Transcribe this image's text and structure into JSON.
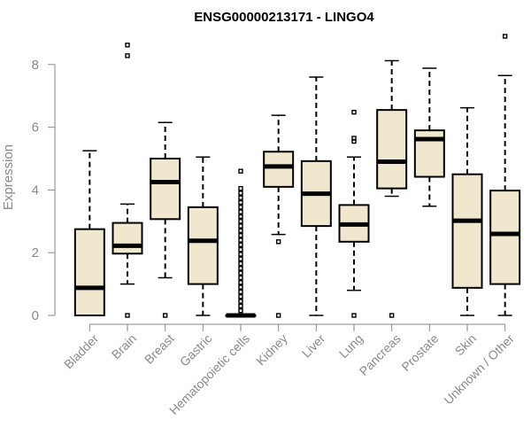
{
  "chart_data": {
    "type": "boxplot",
    "title": "ENSG00000213171 - LINGO4",
    "xlabel": "",
    "ylabel": "Expression",
    "ylim": [
      0,
      9
    ],
    "yticks": [
      0,
      2,
      4,
      6,
      8
    ],
    "box_color": "#efe8cf",
    "categories": [
      "Bladder",
      "Brain",
      "Breast",
      "Gastric",
      "Hematopoietic cells",
      "Kidney",
      "Liver",
      "Lung",
      "Pancreas",
      "Prostate",
      "Skin",
      "Unknown / Other"
    ],
    "boxes": [
      {
        "name": "Bladder",
        "whislo": 0,
        "q1": 0,
        "med": 0.88,
        "q3": 2.75,
        "whishi": 5.25,
        "outliers": []
      },
      {
        "name": "Brain",
        "whislo": 1.0,
        "q1": 1.97,
        "med": 2.22,
        "q3": 2.95,
        "whishi": 3.55,
        "outliers": [
          0,
          8.28,
          8.62
        ]
      },
      {
        "name": "Breast",
        "whislo": 1.2,
        "q1": 3.07,
        "med": 4.25,
        "q3": 5.0,
        "whishi": 6.15,
        "outliers": [
          0
        ]
      },
      {
        "name": "Gastric",
        "whislo": 0,
        "q1": 1.0,
        "med": 2.38,
        "q3": 3.45,
        "whishi": 5.05,
        "outliers": []
      },
      {
        "name": "Hematopoietic cells",
        "whislo": 0,
        "q1": 0,
        "med": 0,
        "q3": 0,
        "whishi": 0,
        "outliers": [
          0.15,
          0.3,
          0.45,
          0.6,
          0.75,
          0.9,
          1.05,
          1.2,
          1.35,
          1.5,
          1.65,
          1.8,
          1.95,
          2.1,
          2.25,
          2.4,
          2.55,
          2.7,
          2.85,
          3.0,
          3.15,
          3.3,
          3.45,
          3.6,
          3.75,
          3.9,
          4.05,
          4.6
        ]
      },
      {
        "name": "Kidney",
        "whislo": 2.58,
        "q1": 4.1,
        "med": 4.75,
        "q3": 5.22,
        "whishi": 6.38,
        "outliers": [
          0,
          2.35
        ]
      },
      {
        "name": "Liver",
        "whislo": 0,
        "q1": 2.85,
        "med": 3.88,
        "q3": 4.92,
        "whishi": 7.6,
        "outliers": []
      },
      {
        "name": "Lung",
        "whislo": 0.8,
        "q1": 2.35,
        "med": 2.9,
        "q3": 3.52,
        "whishi": 5.05,
        "outliers": [
          0,
          5.55,
          5.65,
          6.48
        ]
      },
      {
        "name": "Pancreas",
        "whislo": 3.8,
        "q1": 4.05,
        "med": 4.9,
        "q3": 6.55,
        "whishi": 8.12,
        "outliers": [
          0
        ]
      },
      {
        "name": "Prostate",
        "whislo": 3.48,
        "q1": 4.42,
        "med": 5.62,
        "q3": 5.9,
        "whishi": 7.88,
        "outliers": []
      },
      {
        "name": "Skin",
        "whislo": 0,
        "q1": 0.88,
        "med": 3.02,
        "q3": 4.5,
        "whishi": 6.62,
        "outliers": []
      },
      {
        "name": "Unknown / Other",
        "whislo": 0,
        "q1": 1.0,
        "med": 2.6,
        "q3": 3.98,
        "whishi": 7.65,
        "outliers": [
          8.9
        ]
      }
    ]
  }
}
